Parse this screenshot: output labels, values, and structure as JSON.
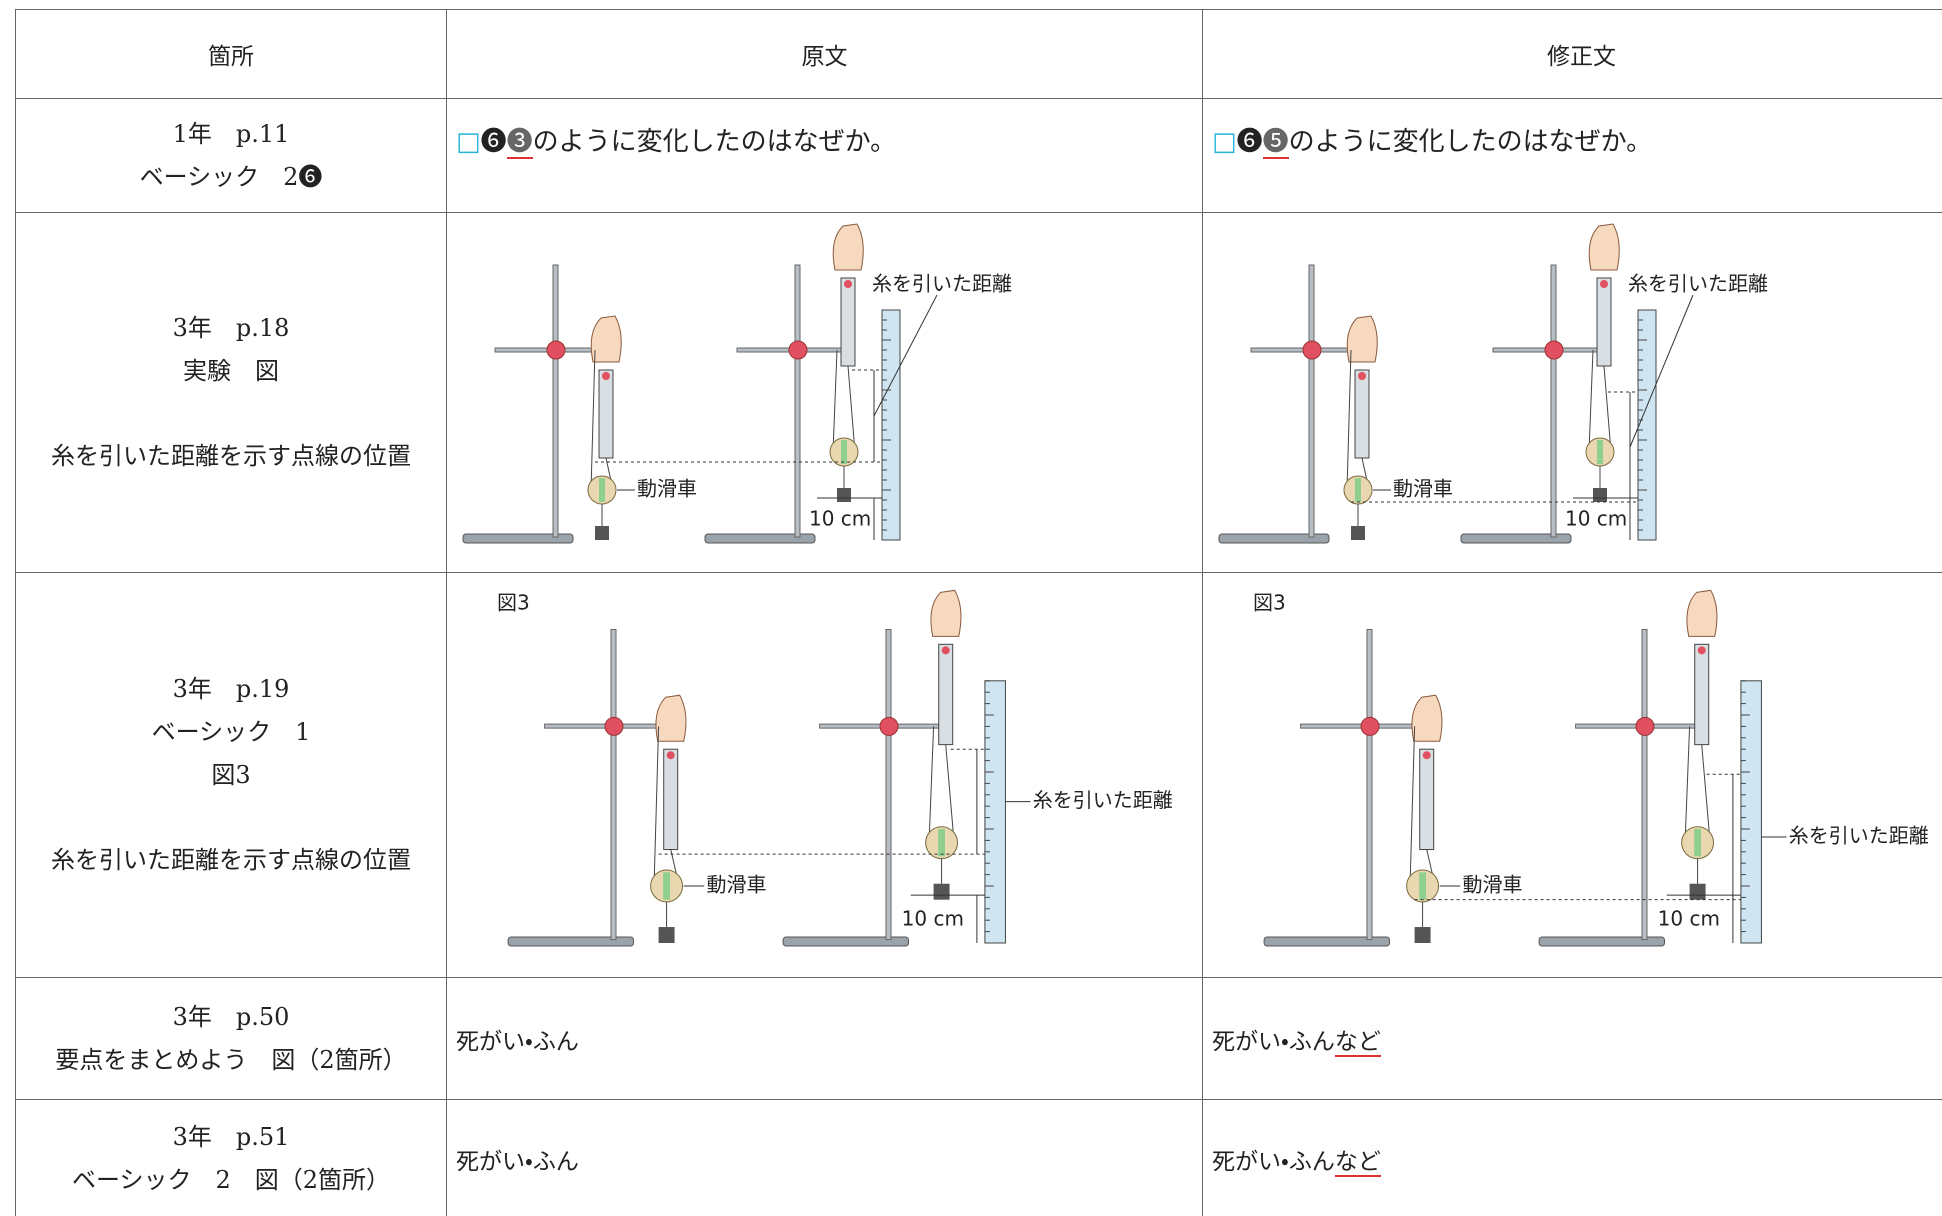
{
  "table": {
    "header": [
      "箇所",
      "原文",
      "修正文"
    ],
    "rows": [
      {
        "location": [
          "1年　p.11",
          "ベーシック　2❻"
        ],
        "original": {
          "box": "□",
          "ref": "❻",
          "changed": "❸",
          "rest": "のように変化したのはなぜか。"
        },
        "corrected": {
          "box": "□",
          "ref": "❻",
          "changed": "❺",
          "rest": "のように変化したのはなぜか。"
        }
      },
      {
        "location": [
          "3年　p.18",
          "実験　図"
        ],
        "note": "糸を引いた距離を示す点線の位置",
        "original": {
          "distance_label": "糸を引いた距離",
          "pulley_label": "動滑車",
          "length_label": "10 cm"
        },
        "corrected": {
          "distance_label": "糸を引いた距離",
          "pulley_label": "動滑車",
          "length_label": "10 cm"
        }
      },
      {
        "location": [
          "3年　p.19",
          "ベーシック　1",
          "図3"
        ],
        "note": "糸を引いた距離を示す点線の位置",
        "original": {
          "figure_label": "図3",
          "distance_label": "糸を引いた距離",
          "pulley_label": "動滑車",
          "length_label": "10 cm"
        },
        "corrected": {
          "figure_label": "図3",
          "distance_label": "糸を引いた距離",
          "pulley_label": "動滑車",
          "length_label": "10 cm"
        }
      },
      {
        "location": [
          "3年　p.50",
          "要点をまとめよう　図（2箇所）"
        ],
        "original": {
          "text": "死がい・ふん"
        },
        "corrected": {
          "text": "死がい・ふん",
          "added": "など"
        }
      },
      {
        "location": [
          "3年　p.51",
          "ベーシック　2　図（2箇所）"
        ],
        "original": {
          "text": "死がい・ふん"
        },
        "corrected": {
          "text": "死がい・ふん",
          "added": "など"
        }
      }
    ]
  }
}
